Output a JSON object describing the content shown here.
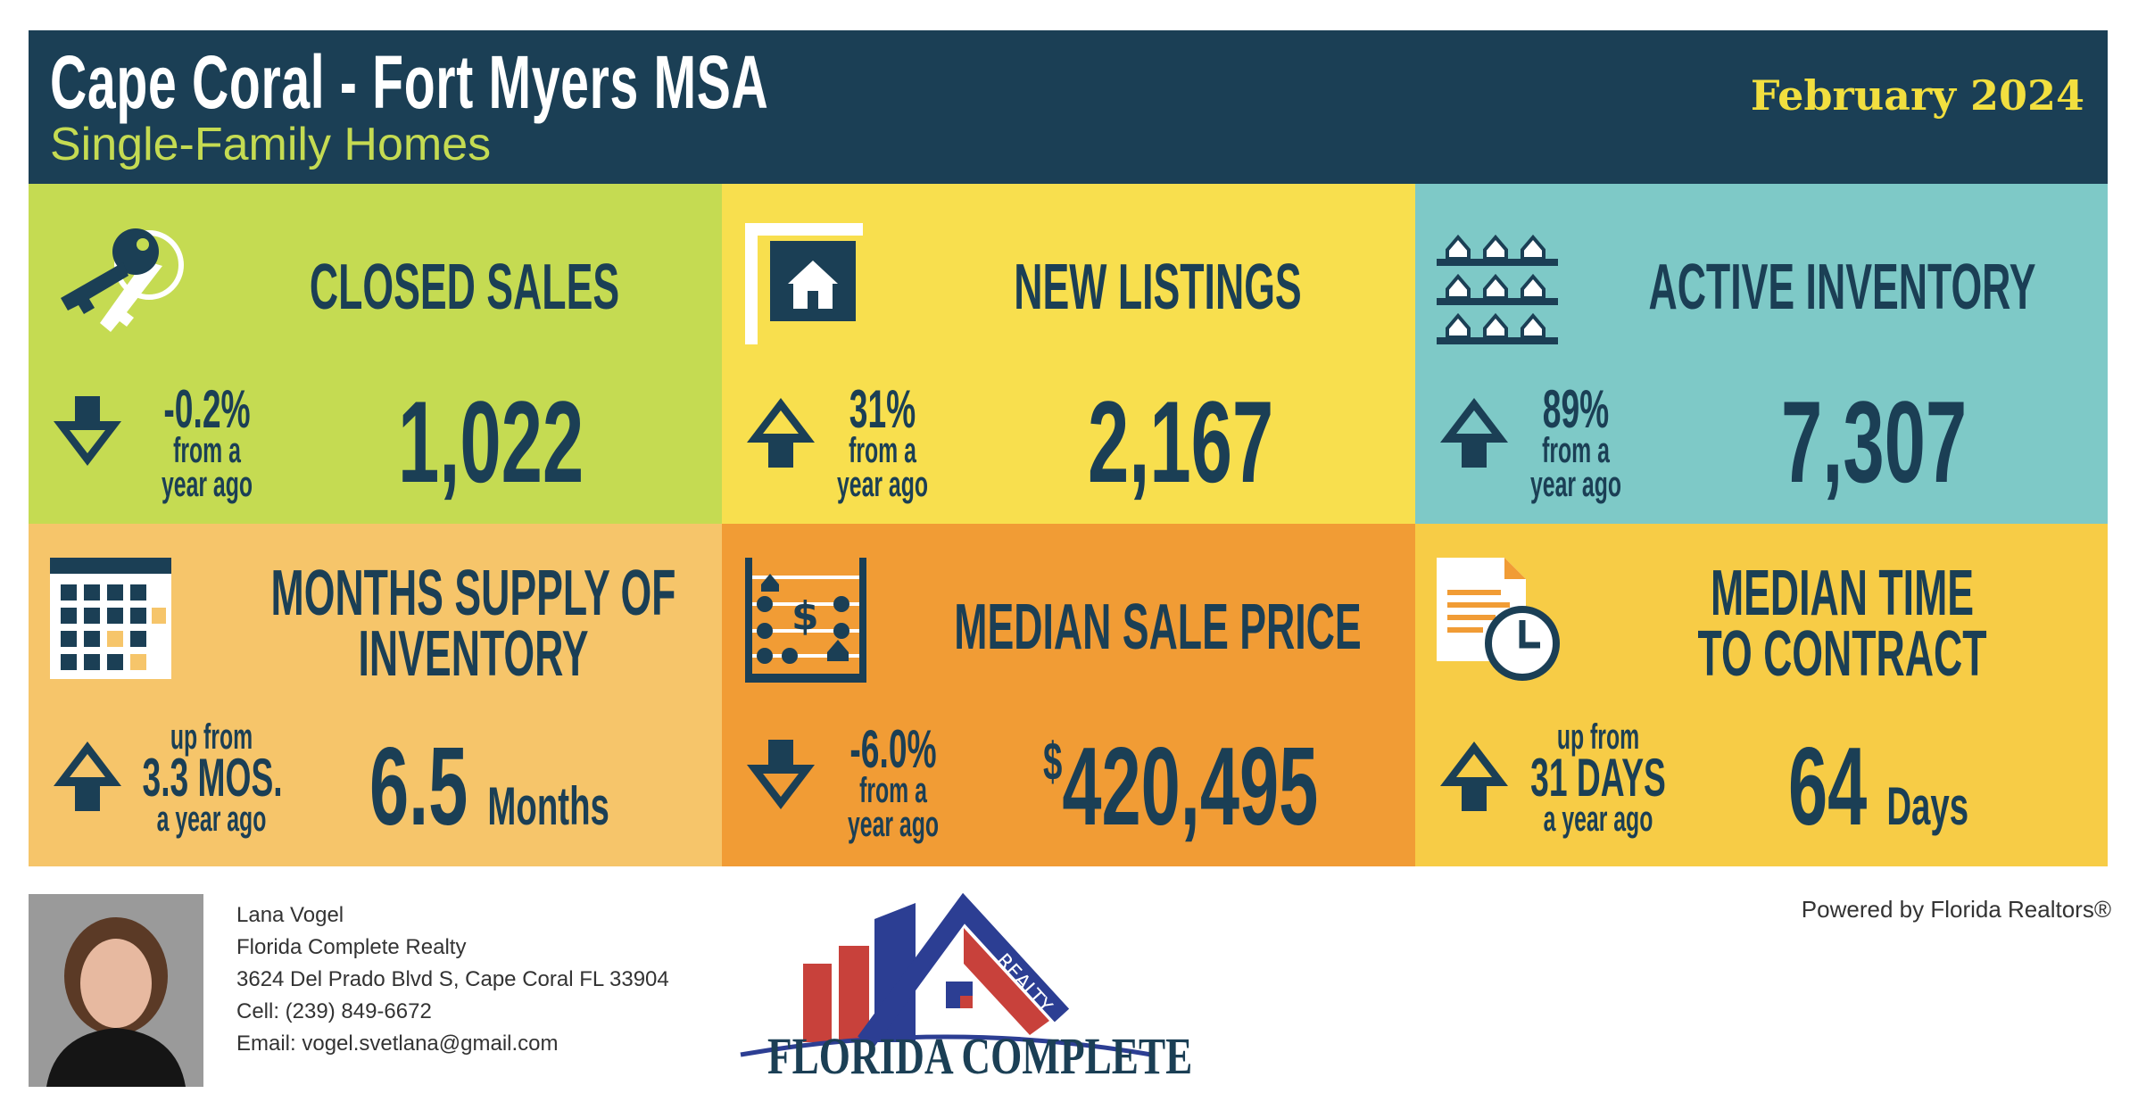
{
  "header": {
    "title": "Cape Coral - Fort Myers MSA",
    "subtitle": "Single-Family Homes",
    "month": "February 2024"
  },
  "colors": {
    "navy": "#1b3f55",
    "green": "#c5db52",
    "yellow": "#f8df4e",
    "teal": "#7ec9c7",
    "peach": "#f6c56a",
    "orange": "#f19c35",
    "gold": "#f7cc46"
  },
  "tiles": {
    "closed_sales": {
      "title": "CLOSED SALES",
      "icon": "keys-icon",
      "direction": "down",
      "change": "-0.2%",
      "change_l1": "from a",
      "change_l2": "year ago",
      "value": "1,022"
    },
    "new_listings": {
      "title": "NEW LISTINGS",
      "icon": "for-sale-sign-icon",
      "direction": "up",
      "change": "31%",
      "change_l1": "from a",
      "change_l2": "year ago",
      "value": "2,167"
    },
    "active_inventory": {
      "title": "ACTIVE INVENTORY",
      "icon": "houses-grid-icon",
      "direction": "up",
      "change": "89%",
      "change_l1": "from a",
      "change_l2": "year ago",
      "value": "7,307"
    },
    "months_supply": {
      "title_l1": "MONTHS SUPPLY OF",
      "title_l2": "INVENTORY",
      "icon": "calendar-icon",
      "direction": "up",
      "change_l0": "up from",
      "change": "3.3 MOS.",
      "change_l2": "a year ago",
      "value": "6.5",
      "unit": "Months"
    },
    "median_price": {
      "title": "MEDIAN SALE PRICE",
      "icon": "abacus-icon",
      "direction": "down",
      "change": "-6.0%",
      "change_l1": "from a",
      "change_l2": "year ago",
      "currency": "$",
      "value": "420,495"
    },
    "median_time": {
      "title_l1": "MEDIAN TIME",
      "title_l2": "TO CONTRACT",
      "icon": "document-clock-icon",
      "direction": "up",
      "change_l0": "up from",
      "change": "31 DAYS",
      "change_l2": "a year ago",
      "value": "64",
      "unit": "Days"
    }
  },
  "footer": {
    "name": "Lana Vogel",
    "company": "Florida Complete Realty",
    "address": "3624 Del Prado Blvd S, Cape Coral FL 33904",
    "cell": "Cell: (239) 849-6672",
    "email": "Email: vogel.svetlana@gmail.com",
    "powered": "Powered by Florida Realtors®",
    "logo_text": "FLORIDA COMPLETE",
    "logo_badge": "REALTY"
  }
}
